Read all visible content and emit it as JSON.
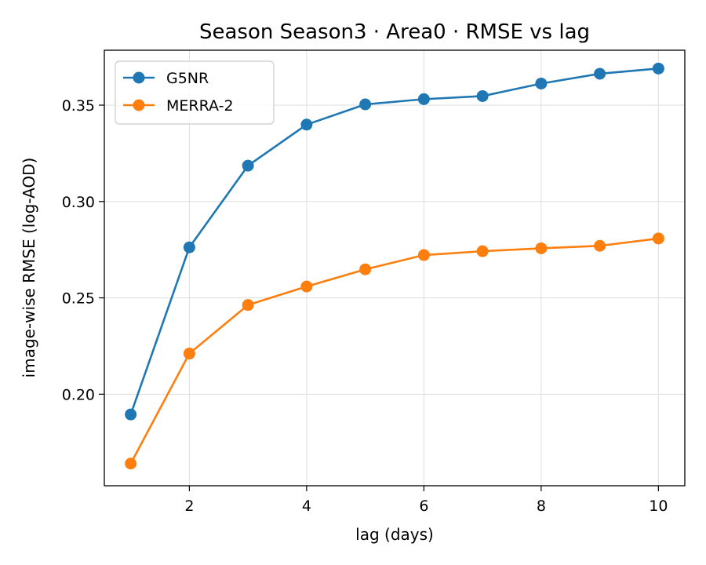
{
  "chart_data": {
    "type": "line",
    "title": "Season Season3 · Area0 · RMSE vs lag",
    "xlabel": "lag (days)",
    "ylabel": "image-wise RMSE (log-AOD)",
    "x": [
      1,
      2,
      3,
      4,
      5,
      6,
      7,
      8,
      9,
      10
    ],
    "xlim": [
      0.55,
      10.45
    ],
    "ylim": [
      0.1525,
      0.3785
    ],
    "xticks": [
      2,
      4,
      6,
      8,
      10
    ],
    "yticks": [
      0.2,
      0.25,
      0.3,
      0.35
    ],
    "ytick_labels": [
      "0.20",
      "0.25",
      "0.30",
      "0.35"
    ],
    "grid": true,
    "legend_position": "top-left",
    "series": [
      {
        "name": "G5NR",
        "color": "#1f77b4",
        "marker": "circle",
        "values": [
          0.1895,
          0.2762,
          0.3186,
          0.3399,
          0.3504,
          0.3531,
          0.3547,
          0.3612,
          0.3663,
          0.369
        ]
      },
      {
        "name": "MERRA-2",
        "color": "#ff7f0e",
        "marker": "circle",
        "values": [
          0.164,
          0.2211,
          0.2463,
          0.2559,
          0.2648,
          0.2722,
          0.2742,
          0.2757,
          0.277,
          0.2808
        ]
      }
    ]
  }
}
